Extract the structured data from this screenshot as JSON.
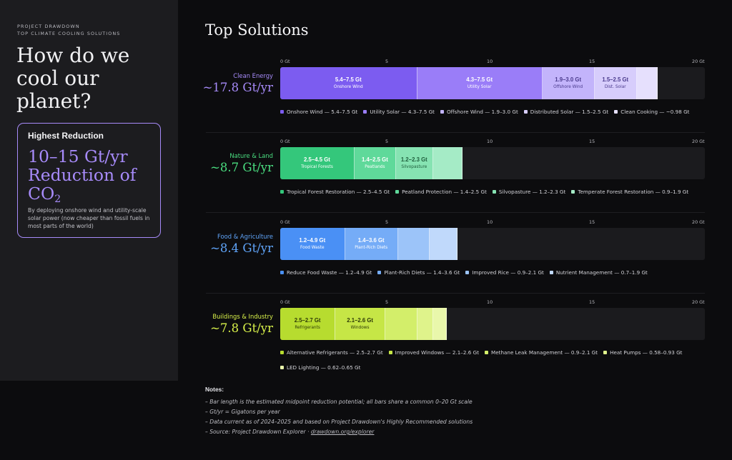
{
  "sidebar": {
    "eyebrow_line1": "PROJECT DRAWDOWN",
    "eyebrow_line2": "TOP CLIMATE COOLING SOLUTIONS",
    "headline_line1": "How do we",
    "headline_line2": "cool our",
    "headline_line3": "planet?",
    "card": {
      "heading": "Highest Reduction",
      "big_line1": "10–15 Gt/yr",
      "big_line2": "Reduction of",
      "big_co": "CO",
      "big_sub": "2",
      "description": "By deploying onshore wind and utility-scale solar power (now cheaper than fossil fuels in most parts of the world)"
    }
  },
  "main_title": "Top Solutions",
  "ticks": [
    "0 Gt",
    "5",
    "10",
    "15",
    "20 Gt"
  ],
  "colors": {
    "energy": "#a78bfa",
    "nature": "#4ade80",
    "food": "#60a5fa",
    "buildings": "#d9f24a"
  },
  "chart_data": {
    "type": "bar",
    "orientation": "horizontal-stacked",
    "xlim": [
      0,
      20
    ],
    "unit": "Gt",
    "categories": [
      {
        "name": "Clean Energy",
        "total": "~17.8 Gt/yr",
        "color": "#a78bfa",
        "solutions": [
          {
            "name": "Onshore Wind",
            "range": "5.4–7.5 Gt",
            "legend": "Onshore Wind — 5.4–7.5 Gt",
            "value": 6.45,
            "color": "#7c5cf0",
            "text": "#ffffff"
          },
          {
            "name": "Utility Solar",
            "range": "4.3–7.5 Gt",
            "legend": "Utility Solar — 4.3–7.5 Gt",
            "value": 5.9,
            "color": "#9a7df8",
            "text": "#ffffff"
          },
          {
            "name": "Offshore Wind",
            "range": "1.9–3.0 Gt",
            "legend": "Offshore Wind — 1.9–3.0 Gt",
            "value": 2.45,
            "color": "#c3b4fb",
            "text": "#4a3a8c"
          },
          {
            "name": "Dist. Solar",
            "range": "1.5–2.5 Gt",
            "legend": "Distributed Solar — 1.5–2.5 Gt",
            "value": 2.0,
            "color": "#d7cdfc",
            "text": "#4a3a8c"
          },
          {
            "name": "",
            "range": "",
            "legend": "Clean Cooking — ~0.98 Gt",
            "value": 0.98,
            "color": "#e6e0fd",
            "text": "#4a3a8c"
          }
        ]
      },
      {
        "name": "Nature & Land",
        "total": "~8.7 Gt/yr",
        "color": "#4ade80",
        "solutions": [
          {
            "name": "Tropical Forests",
            "range": "2.5–4.5 Gt",
            "legend": "Tropical Forest Restoration — 2.5–4.5 Gt",
            "value": 3.5,
            "color": "#34c77b",
            "text": "#ffffff"
          },
          {
            "name": "Peatlands",
            "range": "1.4–2.5 Gt",
            "legend": "Peatland Protection — 1.4–2.5 Gt",
            "value": 1.95,
            "color": "#5fd99a",
            "text": "#ffffff"
          },
          {
            "name": "Silvopasture",
            "range": "1.2–2.3 Gt",
            "legend": "Silvopasture — 1.2–2.3 Gt",
            "value": 1.75,
            "color": "#86e3b2",
            "text": "#1f5e3c"
          },
          {
            "name": "",
            "range": "",
            "legend": "Temperate Forest Restoration — 0.9–1.9 Gt",
            "value": 1.4,
            "color": "#a5ebc6",
            "text": "#1f5e3c"
          }
        ]
      },
      {
        "name": "Food & Agriculture",
        "total": "~8.4 Gt/yr",
        "color": "#60a5fa",
        "solutions": [
          {
            "name": "Food Waste",
            "range": "1.2–4.9 Gt",
            "legend": "Reduce Food Waste — 1.2–4.9 Gt",
            "value": 3.05,
            "color": "#4a90f5",
            "text": "#ffffff"
          },
          {
            "name": "Plant-Rich Diets",
            "range": "1.4–3.6 Gt",
            "legend": "Plant-Rich Diets — 1.4–3.6 Gt",
            "value": 2.5,
            "color": "#75acf7",
            "text": "#ffffff"
          },
          {
            "name": "",
            "range": "",
            "legend": "Improved Rice — 0.9–2.1 Gt",
            "value": 1.5,
            "color": "#9cc4f9",
            "text": "#1d3f6e"
          },
          {
            "name": "",
            "range": "",
            "legend": "Nutrient Management — 0.7–1.9 Gt",
            "value": 1.3,
            "color": "#c0d9fb",
            "text": "#1d3f6e"
          }
        ]
      },
      {
        "name": "Buildings & Industry",
        "total": "~7.8 Gt/yr",
        "color": "#d9f24a",
        "solutions": [
          {
            "name": "Refrigerants",
            "range": "2.5–2.7 Gt",
            "legend": "Alternative Refrigerants — 2.5–2.7 Gt",
            "value": 2.6,
            "color": "#b7dc2f",
            "text": "#2e3a08"
          },
          {
            "name": "Windows",
            "range": "2.1–2.6 Gt",
            "legend": "Improved Windows — 2.1–2.6 Gt",
            "value": 2.35,
            "color": "#c6e646",
            "text": "#2e3a08"
          },
          {
            "name": "",
            "range": "",
            "legend": "Methane Leak Management — 0.9–2.1 Gt",
            "value": 1.5,
            "color": "#d3ee6a",
            "text": "#2e3a08"
          },
          {
            "name": "",
            "range": "",
            "legend": "Heat Pumps — 0.58–0.93 Gt",
            "value": 0.76,
            "color": "#dff38b",
            "text": "#2e3a08"
          },
          {
            "name": "",
            "range": "",
            "legend": "LED Lighting — 0.62–0.65 Gt",
            "value": 0.64,
            "color": "#e9f7ab",
            "text": "#2e3a08"
          }
        ]
      }
    ]
  },
  "notes": {
    "title": "Notes:",
    "items": [
      "Bar length is the estimated midpoint reduction potential; all bars share a common 0–20 Gt scale",
      "Gt/yr = Gigatons per year",
      "Data current as of 2024–2025 and based on Project Drawdown's Highly Recommended solutions"
    ],
    "source_prefix": "Source: Project Drawdown Explorer · ",
    "source_link": "drawdown.org/explorer"
  }
}
